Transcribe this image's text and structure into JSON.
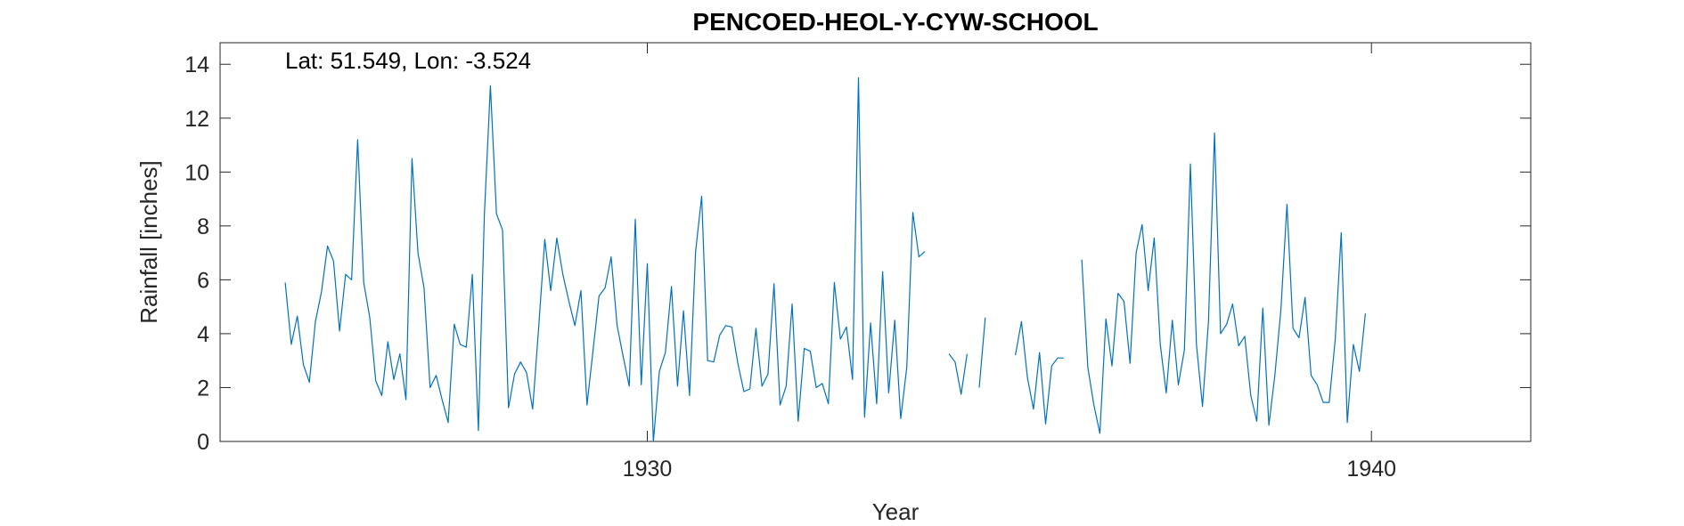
{
  "chart_data": {
    "type": "line",
    "title": "PENCOED-HEOL-Y-CYW-SCHOOL",
    "xlabel": "Year",
    "ylabel": "Rainfall [inches]",
    "annotation": "Lat: 51.549, Lon: -3.524",
    "xlim": [
      1924.1,
      1942.2
    ],
    "ylim": [
      0,
      14.8
    ],
    "x_ticks": [
      1930,
      1940
    ],
    "y_ticks": [
      0,
      2,
      4,
      6,
      8,
      10,
      12,
      14
    ],
    "grid": false,
    "line_color": "#0072bd",
    "series": [
      {
        "start": "1925-01",
        "frequency": "monthly",
        "values": [
          5.9,
          3.6,
          4.65,
          2.85,
          2.2,
          4.45,
          5.55,
          7.25,
          6.7,
          4.1,
          6.2,
          6.0,
          11.2,
          5.9,
          4.6,
          2.25,
          1.7,
          3.7,
          2.3,
          3.25,
          1.55,
          10.5,
          7.0,
          5.7,
          2.0,
          2.45,
          1.55,
          0.7,
          4.35,
          3.6,
          3.5,
          6.2,
          0.4,
          8.4,
          13.2,
          8.45,
          7.85,
          1.25,
          2.5,
          2.95,
          2.55,
          1.2,
          4.25,
          7.5,
          5.6,
          7.55,
          6.2,
          5.2,
          4.3,
          5.6,
          1.35,
          3.35,
          5.4,
          5.7,
          6.85,
          4.3,
          3.15,
          2.05,
          8.25,
          2.1,
          6.6,
          0.0,
          2.6,
          3.3,
          5.75,
          2.05,
          4.85,
          1.7,
          7.05,
          9.1,
          3.0,
          2.95,
          3.95,
          4.3,
          4.25,
          2.9,
          1.85,
          1.95,
          4.2,
          2.05,
          2.5,
          5.85,
          1.35,
          2.05,
          5.1,
          0.75,
          3.45,
          3.35,
          2.0,
          2.15,
          1.4,
          5.9,
          3.8,
          4.25,
          2.3,
          13.5,
          0.9,
          4.4,
          1.4,
          6.3,
          1.8,
          4.5,
          0.85,
          2.75,
          8.5,
          6.85,
          7.05,
          null,
          null,
          null,
          3.25,
          2.95,
          1.75,
          3.25,
          null,
          2.0,
          4.6,
          null,
          null,
          null,
          null,
          3.2,
          4.45,
          2.35,
          1.2,
          3.3,
          0.65,
          2.8,
          3.1,
          3.1,
          null,
          null,
          6.75,
          2.75,
          1.35,
          0.3,
          4.55,
          2.8,
          5.5,
          5.2,
          2.9,
          7.0,
          8.05,
          5.6,
          7.55,
          3.6,
          1.8,
          4.5,
          2.1,
          3.4,
          10.3,
          3.6,
          1.3,
          4.45,
          11.45,
          4.0,
          4.35,
          5.1,
          3.55,
          3.9,
          1.7,
          0.75,
          4.95,
          0.6,
          2.45,
          4.9,
          8.8,
          4.2,
          3.85,
          5.35,
          2.45,
          2.1,
          1.45,
          1.45,
          3.8,
          7.75,
          0.7,
          3.6,
          2.6,
          4.75
        ]
      }
    ]
  }
}
